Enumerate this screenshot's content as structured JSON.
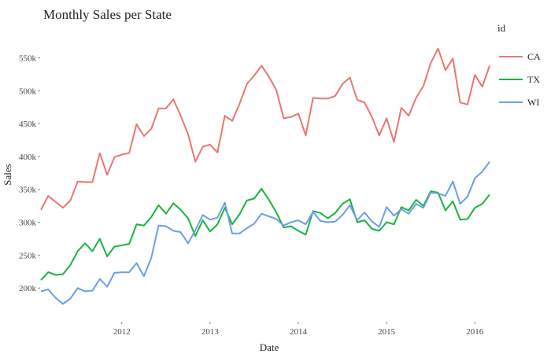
{
  "chart_data": {
    "type": "line",
    "title": "Monthly Sales per State",
    "xlabel": "Date",
    "ylabel": "Sales",
    "grid": false,
    "legend_placement": "right",
    "legend_title": "id",
    "x_start": "2011-02",
    "x_end": "2016-03",
    "x_ticks": [
      "2012",
      "2013",
      "2014",
      "2015",
      "2016"
    ],
    "ylim": [
      150000,
      590000
    ],
    "y_ticks": [
      200000,
      250000,
      300000,
      350000,
      400000,
      450000,
      500000,
      550000
    ],
    "y_tick_labels": [
      "200k",
      "250k",
      "300k",
      "350k",
      "400k",
      "450k",
      "500k",
      "550k"
    ],
    "series": [
      {
        "name": "CA",
        "color": "#e8776f",
        "values": [
          319000,
          340000,
          331000,
          322000,
          333000,
          362000,
          361000,
          361000,
          405000,
          372000,
          399000,
          403000,
          405000,
          449000,
          431000,
          442000,
          473000,
          473000,
          487000,
          462000,
          434000,
          392000,
          415000,
          418000,
          406000,
          462000,
          454000,
          480000,
          510000,
          523000,
          538000,
          521000,
          501000,
          458000,
          460000,
          465000,
          432000,
          489000,
          488000,
          488000,
          492000,
          510000,
          520000,
          486000,
          482000,
          460000,
          432000,
          458000,
          422000,
          474000,
          462000,
          489000,
          507000,
          542000,
          564000,
          531000,
          549000,
          482000,
          479000,
          524000,
          506000,
          538000
        ]
      },
      {
        "name": "TX",
        "color": "#1ab33d",
        "values": [
          212000,
          224000,
          220000,
          221000,
          235000,
          256000,
          268000,
          256000,
          275000,
          248000,
          263000,
          265000,
          267000,
          297000,
          295000,
          308000,
          326000,
          313000,
          329000,
          319000,
          306000,
          279000,
          303000,
          286000,
          297000,
          322000,
          297000,
          312000,
          333000,
          336000,
          351000,
          334000,
          315000,
          292000,
          294000,
          287000,
          281000,
          317000,
          314000,
          306000,
          314000,
          328000,
          335000,
          300000,
          303000,
          290000,
          287000,
          300000,
          297000,
          323000,
          318000,
          334000,
          325000,
          347000,
          345000,
          318000,
          332000,
          304000,
          305000,
          322000,
          328000,
          342000
        ]
      },
      {
        "name": "WI",
        "color": "#6a9ee8",
        "values": [
          195000,
          198000,
          185000,
          176000,
          184000,
          200000,
          195000,
          196000,
          214000,
          202000,
          223000,
          224000,
          224000,
          238000,
          218000,
          246000,
          295000,
          294000,
          287000,
          285000,
          268000,
          288000,
          311000,
          304000,
          307000,
          330000,
          283000,
          283000,
          291000,
          298000,
          313000,
          309000,
          305000,
          295000,
          300000,
          303000,
          297000,
          316000,
          302000,
          300000,
          301000,
          311000,
          326000,
          303000,
          315000,
          301000,
          293000,
          323000,
          310000,
          320000,
          313000,
          328000,
          322000,
          345000,
          344000,
          340000,
          362000,
          328000,
          339000,
          367000,
          377000,
          392000
        ]
      }
    ]
  }
}
